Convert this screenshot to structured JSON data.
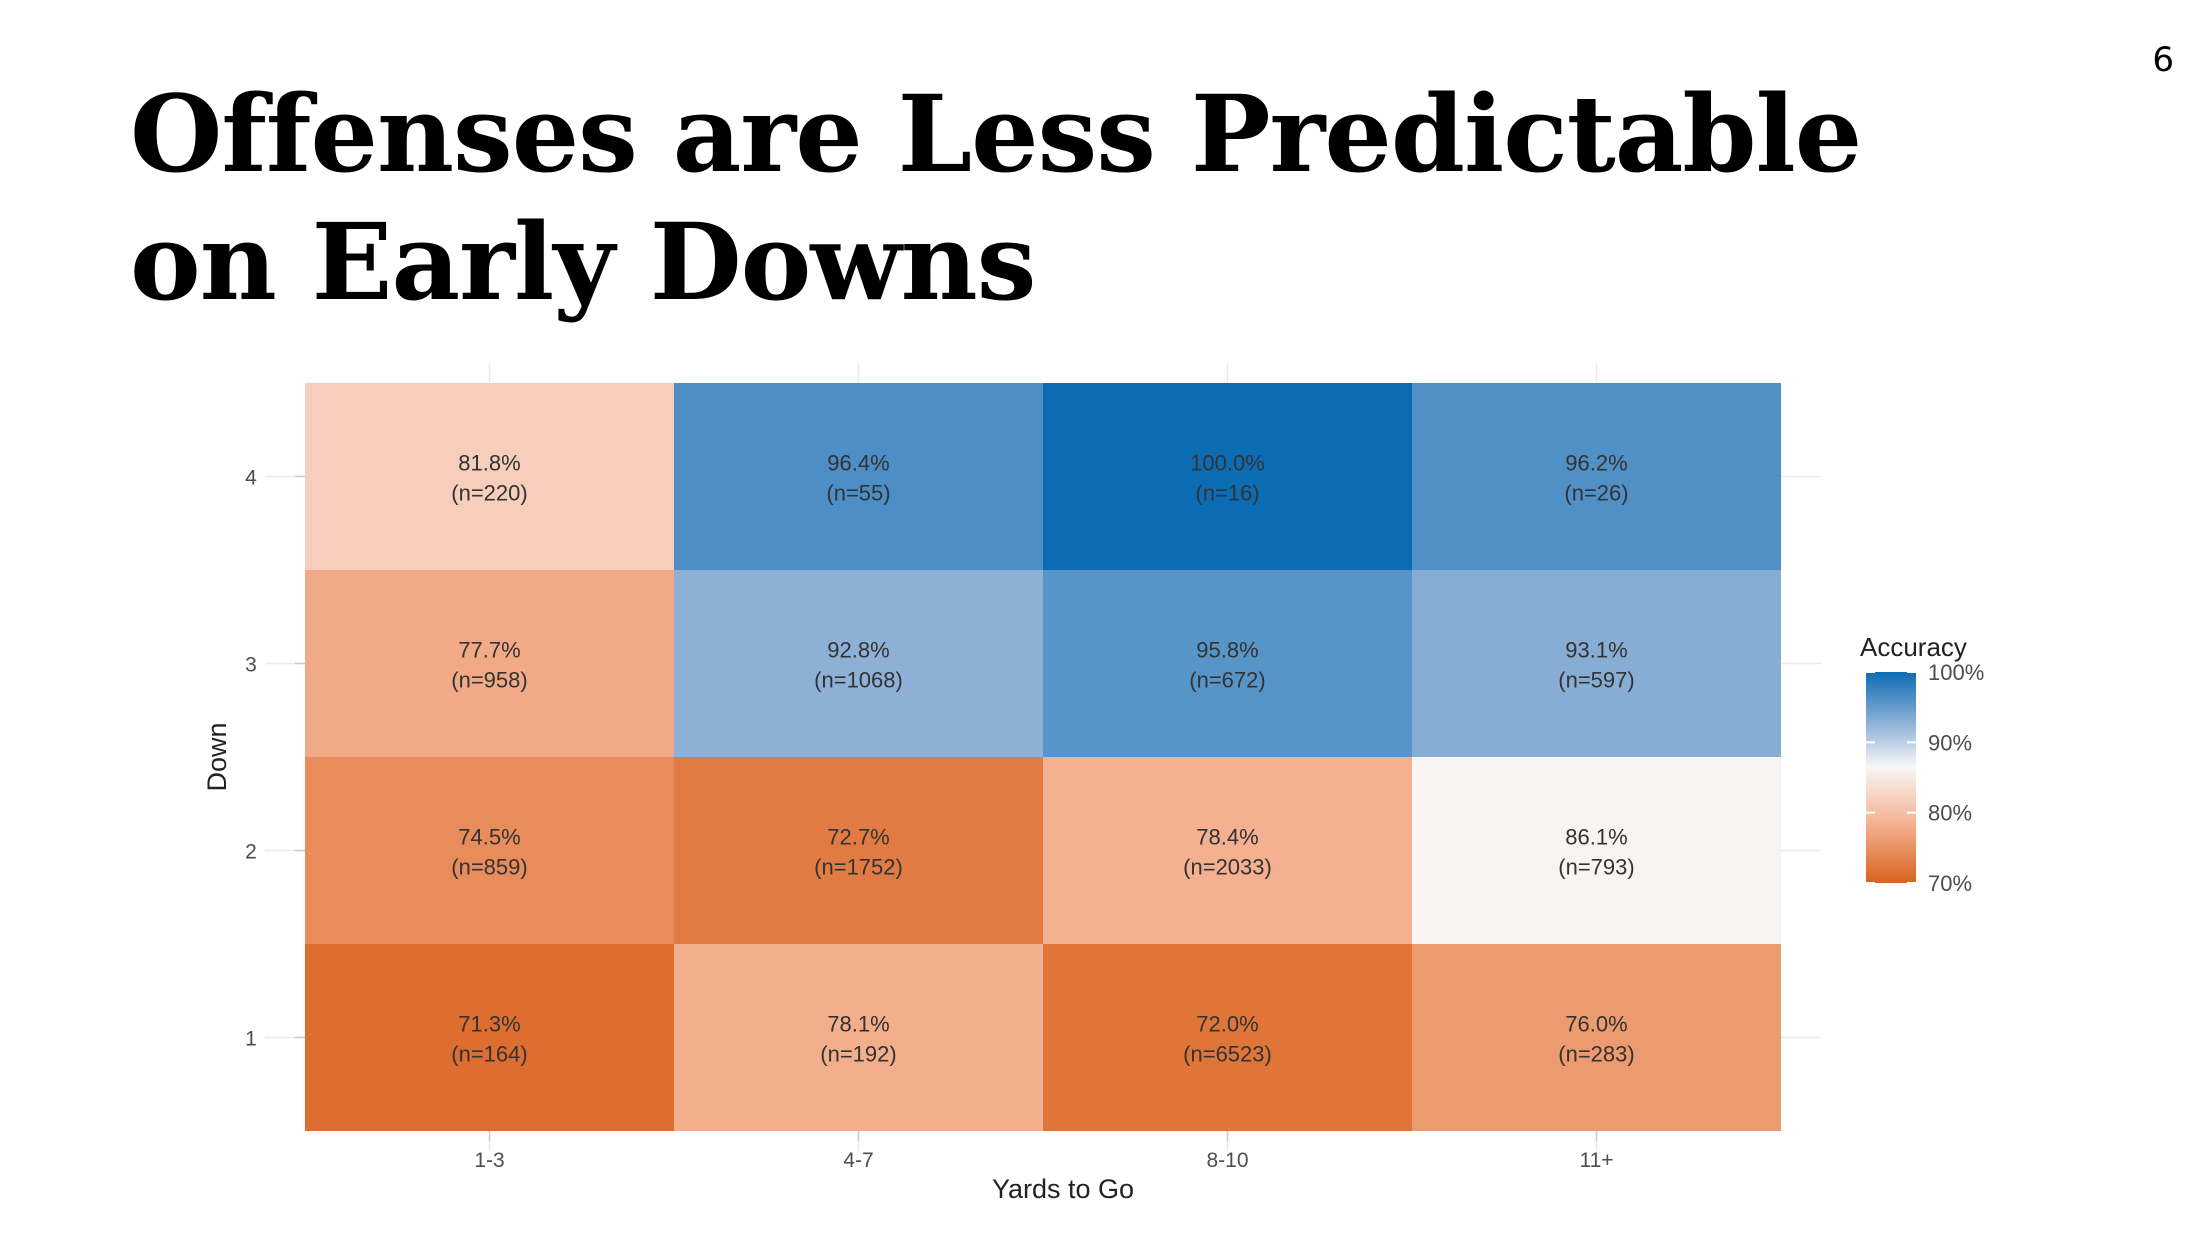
{
  "slide": {
    "title": "Offenses are Less Predictable on Early Downs",
    "page_number": "6"
  },
  "chart_data": {
    "type": "heatmap",
    "xlabel": "Yards to Go",
    "ylabel": "Down",
    "x_categories": [
      "1-3",
      "4-7",
      "8-10",
      "11+"
    ],
    "y_categories": [
      "1",
      "2",
      "3",
      "4"
    ],
    "grid": true,
    "legend": {
      "title": "Accuracy",
      "position": "right",
      "ticks": [
        "100%",
        "90%",
        "80%",
        "70%"
      ],
      "tick_values": [
        100,
        90,
        80,
        70
      ],
      "range": [
        70,
        100
      ],
      "colors": {
        "low": "#d9621e",
        "mid_low": "#f6b698",
        "mid": "#f7f7f7",
        "mid_high": "#92b3d8",
        "high": "#0c6cb3"
      }
    },
    "cells": [
      {
        "down": "4",
        "yards": "1-3",
        "value": 81.8,
        "label": "81.8%",
        "n_label": "(n=220)"
      },
      {
        "down": "4",
        "yards": "4-7",
        "value": 96.4,
        "label": "96.4%",
        "n_label": "(n=55)"
      },
      {
        "down": "4",
        "yards": "8-10",
        "value": 100.0,
        "label": "100.0%",
        "n_label": "(n=16)"
      },
      {
        "down": "4",
        "yards": "11+",
        "value": 96.2,
        "label": "96.2%",
        "n_label": "(n=26)"
      },
      {
        "down": "3",
        "yards": "1-3",
        "value": 77.7,
        "label": "77.7%",
        "n_label": "(n=958)"
      },
      {
        "down": "3",
        "yards": "4-7",
        "value": 92.8,
        "label": "92.8%",
        "n_label": "(n=1068)"
      },
      {
        "down": "3",
        "yards": "8-10",
        "value": 95.8,
        "label": "95.8%",
        "n_label": "(n=672)"
      },
      {
        "down": "3",
        "yards": "11+",
        "value": 93.1,
        "label": "93.1%",
        "n_label": "(n=597)"
      },
      {
        "down": "2",
        "yards": "1-3",
        "value": 74.5,
        "label": "74.5%",
        "n_label": "(n=859)"
      },
      {
        "down": "2",
        "yards": "4-7",
        "value": 72.7,
        "label": "72.7%",
        "n_label": "(n=1752)"
      },
      {
        "down": "2",
        "yards": "8-10",
        "value": 78.4,
        "label": "78.4%",
        "n_label": "(n=2033)"
      },
      {
        "down": "2",
        "yards": "11+",
        "value": 86.1,
        "label": "86.1%",
        "n_label": "(n=793)"
      },
      {
        "down": "1",
        "yards": "1-3",
        "value": 71.3,
        "label": "71.3%",
        "n_label": "(n=164)"
      },
      {
        "down": "1",
        "yards": "4-7",
        "value": 78.1,
        "label": "78.1%",
        "n_label": "(n=192)"
      },
      {
        "down": "1",
        "yards": "8-10",
        "value": 72.0,
        "label": "72.0%",
        "n_label": "(n=6523)"
      },
      {
        "down": "1",
        "yards": "11+",
        "value": 76.0,
        "label": "76.0%",
        "n_label": "(n=283)"
      }
    ]
  }
}
